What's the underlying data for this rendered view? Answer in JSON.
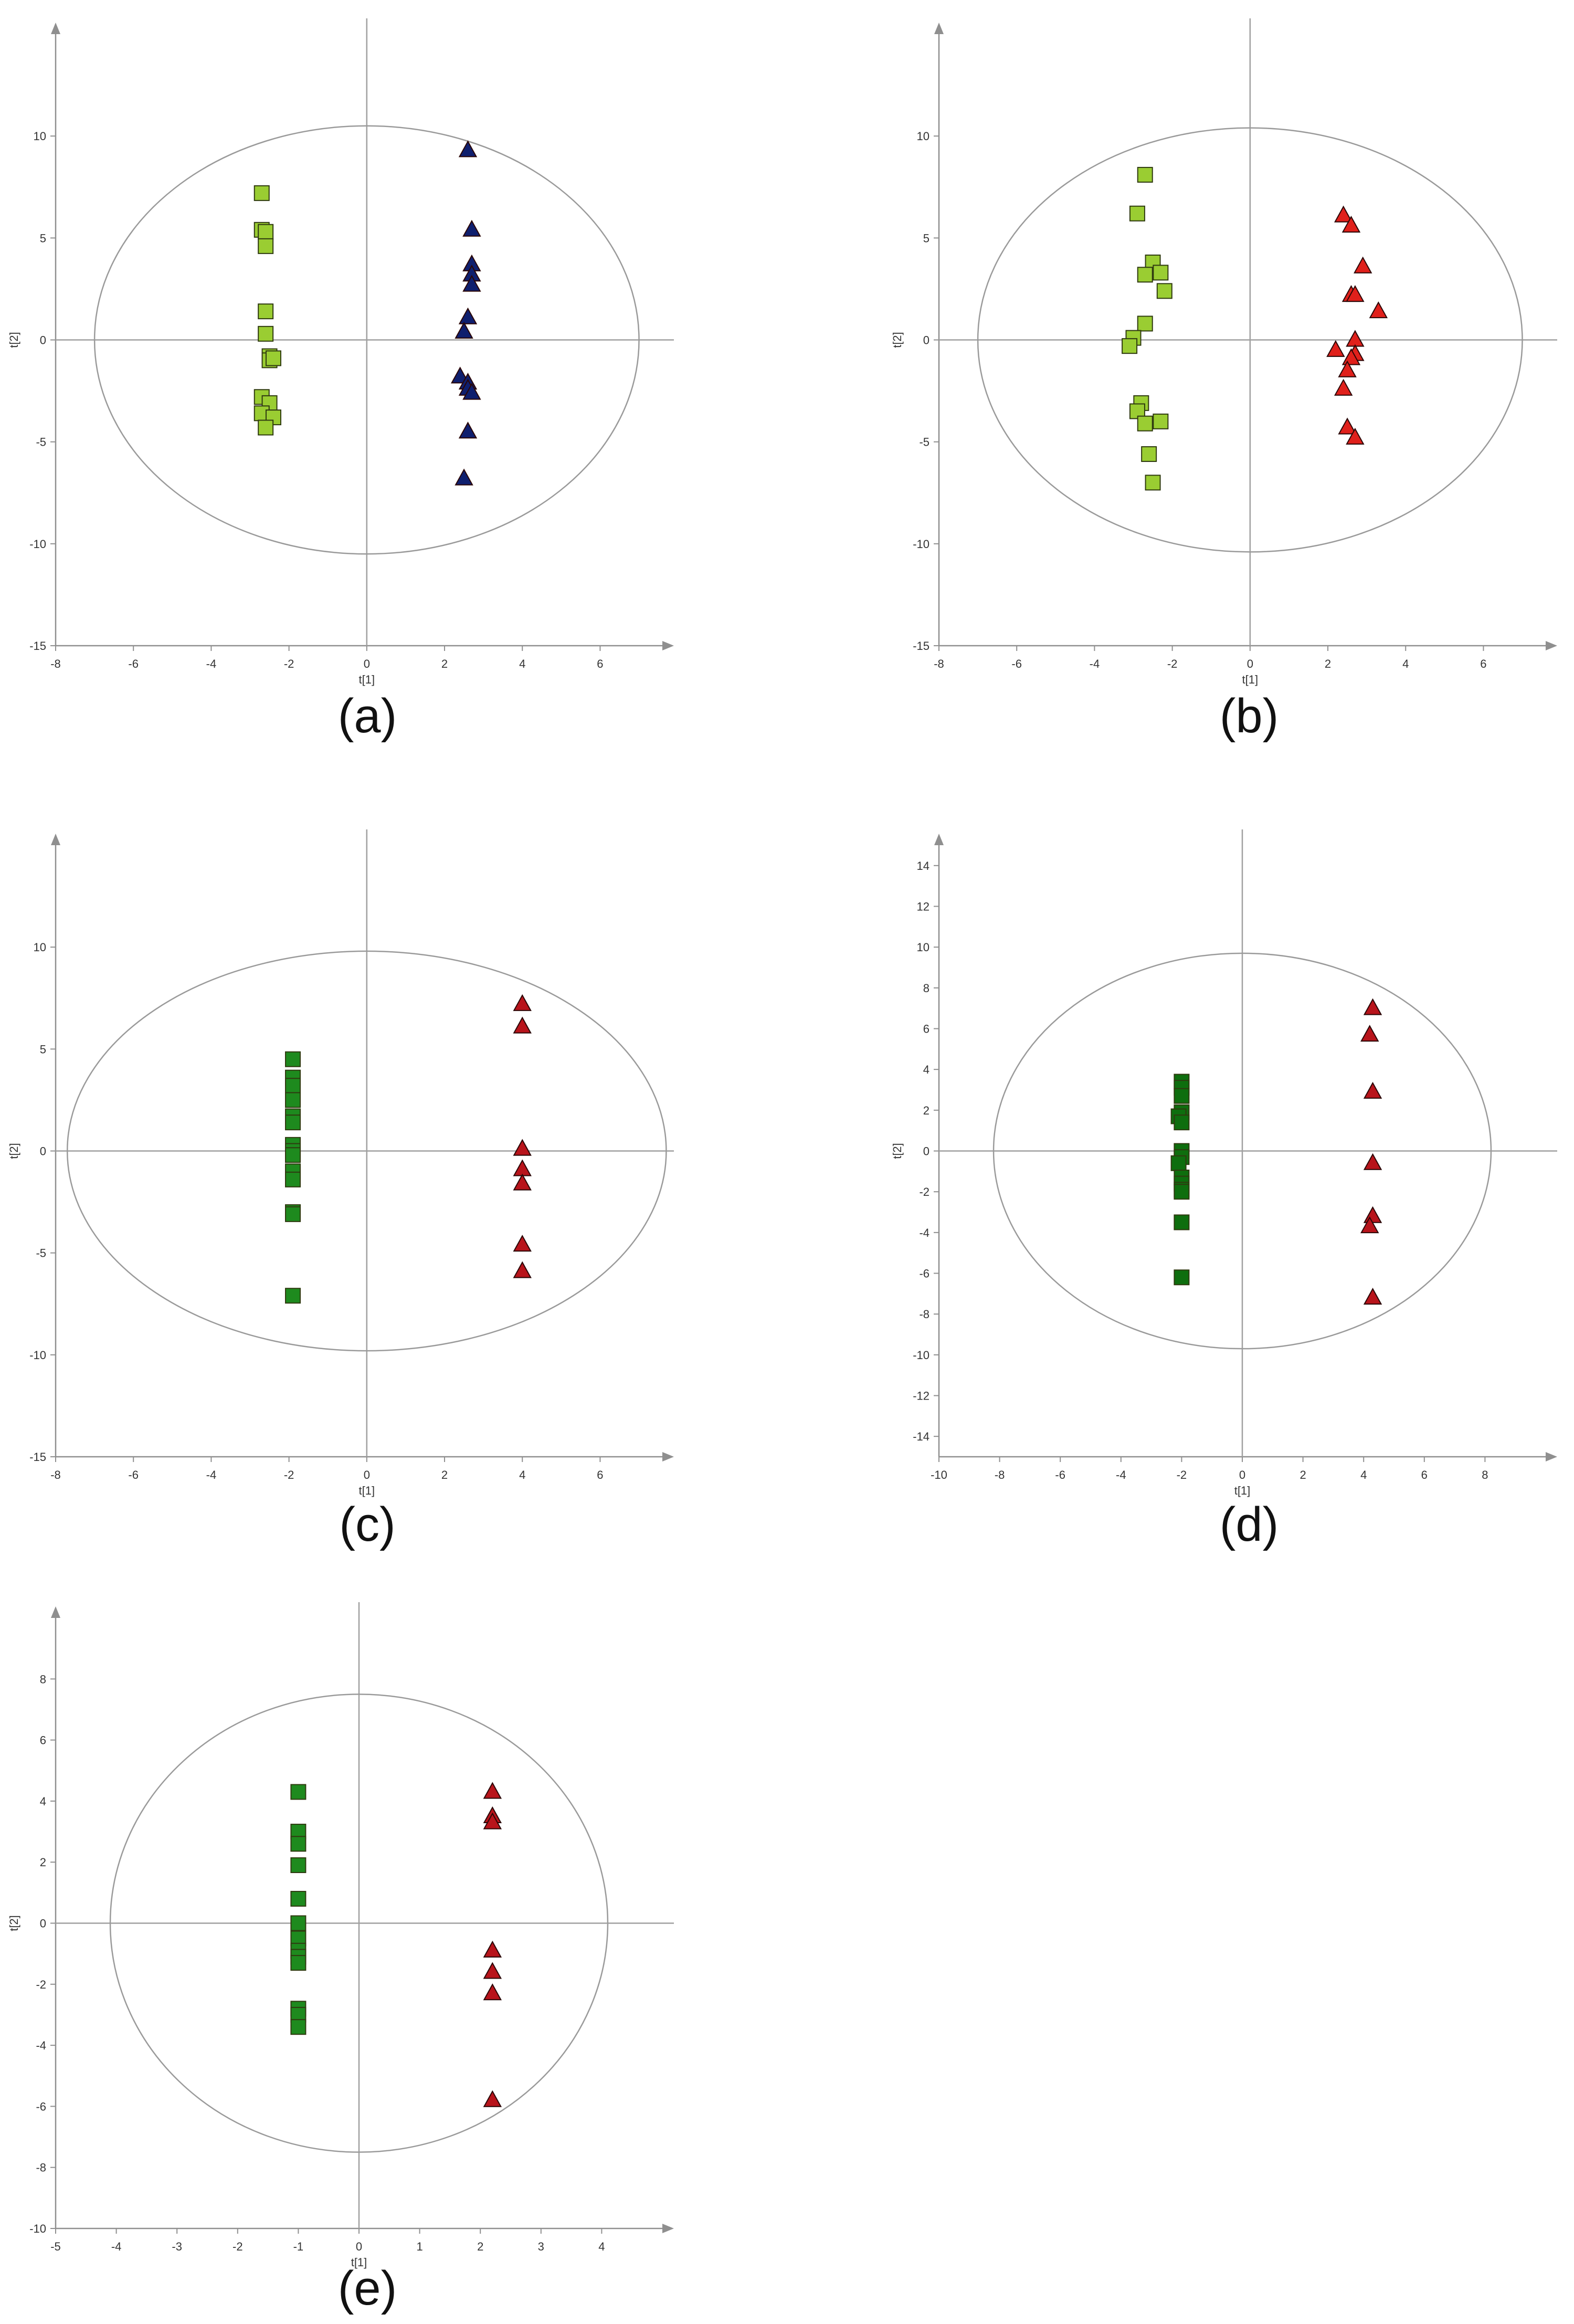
{
  "chart_data": [
    {
      "panel": "(a)",
      "type": "scatter",
      "xlabel": "t[1]",
      "ylabel": "t[2]",
      "xlim": [
        -8,
        7.6
      ],
      "ylim": [
        -15,
        15
      ],
      "xticks": [
        -8,
        -6,
        -4,
        -2,
        0,
        2,
        4,
        6
      ],
      "yticks": [
        -15,
        -10,
        -5,
        0,
        5,
        10
      ],
      "ellipse": {
        "rx": 7,
        "ry": 10.5
      },
      "series": [
        {
          "marker": "square",
          "color": "#9acd32",
          "x": [
            -2.7,
            -2.7,
            -2.6,
            -2.6,
            -2.6,
            -2.6,
            -2.5,
            -2.5,
            -2.4,
            -2.7,
            -2.5,
            -2.7,
            -2.4,
            -2.6
          ],
          "y": [
            7.2,
            5.4,
            5.3,
            4.6,
            1.4,
            0.3,
            -0.8,
            -1.0,
            -0.9,
            -2.8,
            -3.1,
            -3.6,
            -3.8,
            -4.3
          ]
        },
        {
          "marker": "triangle",
          "color": "#0f1f6e",
          "x": [
            2.6,
            2.7,
            2.7,
            2.7,
            2.7,
            2.6,
            2.5,
            2.4,
            2.6,
            2.6,
            2.7,
            2.6,
            2.5
          ],
          "y": [
            9.3,
            5.4,
            3.7,
            3.2,
            2.7,
            1.1,
            0.4,
            -1.8,
            -2.1,
            -2.4,
            -2.6,
            -4.5,
            -6.8
          ]
        }
      ]
    },
    {
      "panel": "(b)",
      "type": "scatter",
      "xlabel": "t[1]",
      "ylabel": "t[2]",
      "xlim": [
        -8,
        7.6
      ],
      "ylim": [
        -15,
        15
      ],
      "xticks": [
        -8,
        -6,
        -4,
        -2,
        0,
        2,
        4,
        6
      ],
      "yticks": [
        -15,
        -10,
        -5,
        0,
        5,
        10
      ],
      "ellipse": {
        "rx": 7,
        "ry": 10.4
      },
      "series": [
        {
          "marker": "square",
          "color": "#9acd32",
          "x": [
            -2.7,
            -2.9,
            -2.5,
            -2.3,
            -2.7,
            -2.2,
            -2.7,
            -3.0,
            -3.1,
            -2.8,
            -2.9,
            -2.7,
            -2.3,
            -2.6,
            -2.5
          ],
          "y": [
            8.1,
            6.2,
            3.8,
            3.3,
            3.2,
            2.4,
            0.8,
            0.1,
            -0.3,
            -3.1,
            -3.5,
            -4.1,
            -4.0,
            -5.6,
            -7.0
          ]
        },
        {
          "marker": "triangle",
          "color": "#e0201b",
          "x": [
            2.4,
            2.6,
            2.9,
            3.3,
            2.6,
            2.7,
            2.7,
            2.2,
            2.7,
            2.6,
            2.5,
            2.4,
            2.5,
            2.7
          ],
          "y": [
            6.1,
            5.6,
            3.6,
            1.4,
            2.2,
            2.2,
            0.0,
            -0.5,
            -0.7,
            -0.9,
            -1.5,
            -2.4,
            -4.3,
            -4.8
          ]
        }
      ]
    },
    {
      "panel": "(c)",
      "type": "scatter",
      "xlabel": "t[1]",
      "ylabel": "t[2]",
      "xlim": [
        -8,
        7.6
      ],
      "ylim": [
        -15,
        15
      ],
      "xticks": [
        -8,
        -6,
        -4,
        -2,
        0,
        2,
        4,
        6
      ],
      "yticks": [
        -15,
        -10,
        -5,
        0,
        5,
        10
      ],
      "ellipse": {
        "rx": 7.7,
        "ry": 9.8
      },
      "series": [
        {
          "marker": "square",
          "color": "#1e8a1e",
          "x": [
            -1.9,
            -1.9,
            -1.9,
            -1.9,
            -1.9,
            -1.9,
            -1.9,
            -1.9,
            -1.9,
            -1.9,
            -1.9,
            -1.9,
            -1.9,
            -1.9
          ],
          "y": [
            4.5,
            3.6,
            3.2,
            2.5,
            1.7,
            1.4,
            0.3,
            0.0,
            -0.2,
            -1.0,
            -1.4,
            -3.0,
            -3.1,
            -7.1
          ]
        },
        {
          "marker": "triangle",
          "color": "#b8141b",
          "x": [
            4.0,
            4.0,
            4.0,
            4.0,
            4.0,
            4.0,
            4.0
          ],
          "y": [
            7.2,
            6.1,
            0.1,
            -0.9,
            -1.6,
            -4.6,
            -5.9
          ]
        }
      ]
    },
    {
      "panel": "(d)",
      "type": "scatter",
      "xlabel": "t[1]",
      "ylabel": "t[2]",
      "xlim": [
        -10,
        10
      ],
      "ylim": [
        -15,
        15
      ],
      "xticks": [
        -10,
        -8,
        -6,
        -4,
        -2,
        0,
        2,
        4,
        6,
        8
      ],
      "yticks": [
        -14,
        -12,
        -10,
        -8,
        -6,
        -4,
        -2,
        0,
        2,
        4,
        6,
        8,
        10,
        12,
        14
      ],
      "ellipse": {
        "rx": 8.2,
        "ry": 9.7
      },
      "series": [
        {
          "marker": "square",
          "color": "#0e6e0e",
          "x": [
            -2.0,
            -2.0,
            -2.0,
            -2.0,
            -2.1,
            -2.0,
            -2.0,
            -2.0,
            -2.1,
            -2.0,
            -2.0,
            -2.0,
            -2.0,
            -2.0,
            -2.0
          ],
          "y": [
            3.4,
            3.1,
            2.7,
            1.9,
            1.7,
            1.4,
            0.0,
            -0.3,
            -0.6,
            -1.3,
            -1.6,
            -1.9,
            -2.0,
            -3.5,
            -6.2
          ]
        },
        {
          "marker": "triangle",
          "color": "#b8141b",
          "x": [
            4.3,
            4.2,
            4.3,
            4.3,
            4.3,
            4.2,
            4.3
          ],
          "y": [
            7.0,
            5.7,
            2.9,
            -0.6,
            -3.2,
            -3.7,
            -7.2
          ]
        }
      ]
    },
    {
      "panel": "(e)",
      "type": "scatter",
      "xlabel": "t[1]",
      "ylabel": "t[2]",
      "xlim": [
        -5,
        5
      ],
      "ylim": [
        -10,
        10
      ],
      "xticks": [
        -5,
        -4,
        -3,
        -2,
        -1,
        0,
        1,
        2,
        3,
        4
      ],
      "yticks": [
        -10,
        -8,
        -6,
        -4,
        -2,
        0,
        2,
        4,
        6,
        8
      ],
      "ellipse": {
        "rx": 4.1,
        "ry": 7.5
      },
      "series": [
        {
          "marker": "square",
          "color": "#1e8a1e",
          "x": [
            -1.0,
            -1.0,
            -1.0,
            -1.0,
            -1.0,
            -1.0,
            -1.0,
            -1.0,
            -1.0,
            -1.0,
            -1.0,
            -1.0,
            -1.0
          ],
          "y": [
            4.3,
            3.0,
            2.6,
            1.9,
            0.8,
            0.0,
            -0.5,
            -0.9,
            -1.1,
            -1.3,
            -2.8,
            -3.0,
            -3.4
          ]
        },
        {
          "marker": "triangle",
          "color": "#b8141b",
          "x": [
            2.2,
            2.2,
            2.2,
            2.2,
            2.2,
            2.2,
            2.2
          ],
          "y": [
            4.3,
            3.5,
            3.3,
            -0.9,
            -1.6,
            -2.3,
            -5.8
          ]
        }
      ]
    }
  ]
}
